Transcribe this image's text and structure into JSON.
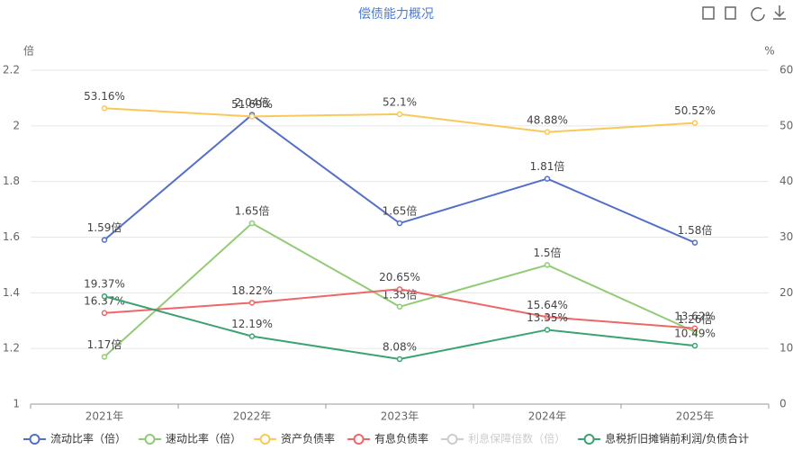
{
  "chart_data": {
    "type": "line",
    "title": "偿债能力概况",
    "y_unit": "倍",
    "y2_unit": "%",
    "categories": [
      "2021年",
      "2022年",
      "2023年",
      "2024年",
      "2025年"
    ],
    "ylim": [
      1,
      2.2
    ],
    "yticks": [
      1,
      1.2,
      1.4,
      1.6,
      1.8,
      2,
      2.2
    ],
    "y2lim": [
      0,
      60
    ],
    "y2ticks": [
      0,
      10,
      20,
      30,
      40,
      50,
      60
    ],
    "grid": true,
    "legend": "bottom",
    "series": [
      {
        "name": "流动比率（倍）",
        "color": "#5470c6",
        "axis": "y",
        "values": [
          1.59,
          2.04,
          1.65,
          1.81,
          1.58
        ],
        "value_labels": [
          "1.59倍",
          "2.04倍",
          "1.65倍",
          "1.81倍",
          "1.58倍"
        ]
      },
      {
        "name": "速动比率（倍）",
        "color": "#91cc75",
        "axis": "y",
        "values": [
          1.17,
          1.65,
          1.35,
          1.5,
          1.26
        ],
        "value_labels": [
          "1.17倍",
          "1.65倍",
          "1.35倍",
          "1.5倍",
          "1.26倍"
        ]
      },
      {
        "name": "资产负债率",
        "color": "#fac858",
        "axis": "y2",
        "values": [
          53.16,
          51.69,
          52.1,
          48.88,
          50.52
        ],
        "value_labels": [
          "53.16%",
          "51.69%",
          "52.1%",
          "48.88%",
          "50.52%"
        ]
      },
      {
        "name": "有息负债率",
        "color": "#ee6666",
        "axis": "y2",
        "values": [
          16.37,
          18.22,
          20.65,
          15.64,
          13.62
        ],
        "value_labels": [
          "16.37%",
          "18.22%",
          "20.65%",
          "15.64%",
          "13.62%"
        ]
      },
      {
        "name": "利息保障倍数（倍）",
        "color": "#cccccc",
        "axis": "y",
        "hidden": true,
        "values": [
          null,
          null,
          null,
          null,
          null
        ]
      },
      {
        "name": "息税折旧摊销前利润/负债合计",
        "color": "#3ba272",
        "axis": "y2",
        "values": [
          19.37,
          12.19,
          8.08,
          13.35,
          10.49
        ],
        "value_labels": [
          "19.37%",
          "12.19%",
          "8.08%",
          "13.35%",
          "10.49%"
        ]
      }
    ]
  }
}
